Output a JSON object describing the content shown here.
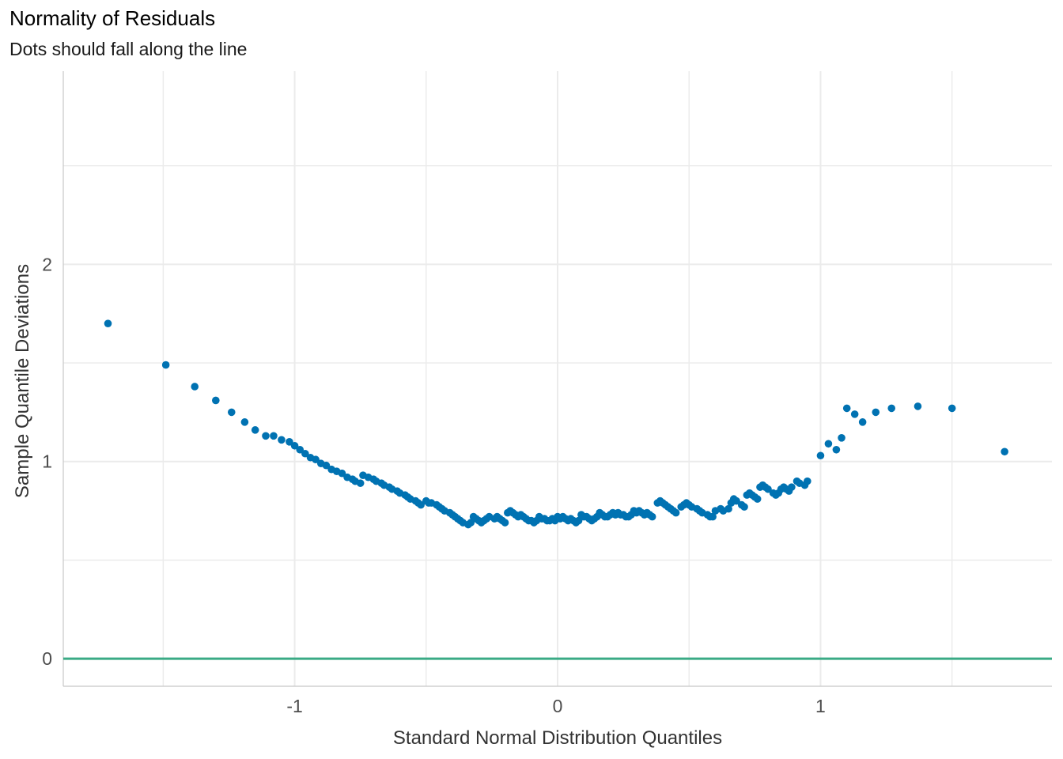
{
  "chart_data": {
    "type": "scatter",
    "title": "Normality of Residuals",
    "subtitle": "Dots should fall along the line",
    "xlabel": "Standard Normal Distribution Quantiles",
    "ylabel": "Sample Quantile Deviations",
    "xlim": [
      -1.88,
      1.88
    ],
    "ylim": [
      -0.14,
      2.98
    ],
    "x_ticks": [
      -1,
      0,
      1
    ],
    "x_tick_labels": [
      "-1",
      "0",
      "1"
    ],
    "y_ticks": [
      0,
      1,
      2
    ],
    "y_tick_labels": [
      "0",
      "1",
      "2"
    ],
    "grid": true,
    "reference_line": {
      "y": 0,
      "color": "#3aaa85"
    },
    "point_color": "#0072b2",
    "grid_color": "#ebebeb",
    "points": [
      [
        -1.71,
        1.7
      ],
      [
        -1.49,
        1.49
      ],
      [
        -1.38,
        1.38
      ],
      [
        -1.3,
        1.31
      ],
      [
        -1.24,
        1.25
      ],
      [
        -1.19,
        1.2
      ],
      [
        -1.15,
        1.16
      ],
      [
        -1.11,
        1.13
      ],
      [
        -1.08,
        1.13
      ],
      [
        -1.05,
        1.11
      ],
      [
        -1.02,
        1.1
      ],
      [
        -1.0,
        1.08
      ],
      [
        -0.98,
        1.06
      ],
      [
        -0.96,
        1.04
      ],
      [
        -0.94,
        1.02
      ],
      [
        -0.92,
        1.01
      ],
      [
        -0.9,
        0.99
      ],
      [
        -0.88,
        0.98
      ],
      [
        -0.86,
        0.96
      ],
      [
        -0.84,
        0.95
      ],
      [
        -0.82,
        0.94
      ],
      [
        -0.8,
        0.92
      ],
      [
        -0.78,
        0.91
      ],
      [
        -0.77,
        0.9
      ],
      [
        -0.75,
        0.89
      ],
      [
        -0.74,
        0.93
      ],
      [
        -0.72,
        0.92
      ],
      [
        -0.7,
        0.91
      ],
      [
        -0.69,
        0.9
      ],
      [
        -0.67,
        0.89
      ],
      [
        -0.66,
        0.88
      ],
      [
        -0.64,
        0.87
      ],
      [
        -0.63,
        0.86
      ],
      [
        -0.61,
        0.85
      ],
      [
        -0.6,
        0.84
      ],
      [
        -0.58,
        0.83
      ],
      [
        -0.57,
        0.82
      ],
      [
        -0.56,
        0.81
      ],
      [
        -0.54,
        0.8
      ],
      [
        -0.53,
        0.79
      ],
      [
        -0.52,
        0.78
      ],
      [
        -0.5,
        0.8
      ],
      [
        -0.49,
        0.79
      ],
      [
        -0.48,
        0.79
      ],
      [
        -0.46,
        0.78
      ],
      [
        -0.45,
        0.77
      ],
      [
        -0.44,
        0.76
      ],
      [
        -0.43,
        0.75
      ],
      [
        -0.41,
        0.74
      ],
      [
        -0.4,
        0.73
      ],
      [
        -0.39,
        0.72
      ],
      [
        -0.38,
        0.71
      ],
      [
        -0.37,
        0.7
      ],
      [
        -0.36,
        0.69
      ],
      [
        -0.34,
        0.68
      ],
      [
        -0.33,
        0.69
      ],
      [
        -0.32,
        0.72
      ],
      [
        -0.31,
        0.71
      ],
      [
        -0.3,
        0.7
      ],
      [
        -0.29,
        0.69
      ],
      [
        -0.28,
        0.7
      ],
      [
        -0.27,
        0.71
      ],
      [
        -0.26,
        0.72
      ],
      [
        -0.24,
        0.71
      ],
      [
        -0.23,
        0.72
      ],
      [
        -0.22,
        0.71
      ],
      [
        -0.21,
        0.7
      ],
      [
        -0.2,
        0.69
      ],
      [
        -0.19,
        0.74
      ],
      [
        -0.18,
        0.75
      ],
      [
        -0.17,
        0.74
      ],
      [
        -0.16,
        0.73
      ],
      [
        -0.15,
        0.72
      ],
      [
        -0.14,
        0.73
      ],
      [
        -0.13,
        0.72
      ],
      [
        -0.12,
        0.71
      ],
      [
        -0.11,
        0.7
      ],
      [
        -0.1,
        0.7
      ],
      [
        -0.09,
        0.69
      ],
      [
        -0.08,
        0.7
      ],
      [
        -0.07,
        0.72
      ],
      [
        -0.06,
        0.71
      ],
      [
        -0.05,
        0.71
      ],
      [
        -0.04,
        0.7
      ],
      [
        -0.03,
        0.7
      ],
      [
        -0.02,
        0.71
      ],
      [
        -0.01,
        0.7
      ],
      [
        0.0,
        0.72
      ],
      [
        0.01,
        0.71
      ],
      [
        0.02,
        0.72
      ],
      [
        0.03,
        0.71
      ],
      [
        0.04,
        0.7
      ],
      [
        0.05,
        0.71
      ],
      [
        0.06,
        0.7
      ],
      [
        0.07,
        0.69
      ],
      [
        0.08,
        0.7
      ],
      [
        0.09,
        0.73
      ],
      [
        0.1,
        0.72
      ],
      [
        0.11,
        0.72
      ],
      [
        0.12,
        0.71
      ],
      [
        0.13,
        0.7
      ],
      [
        0.14,
        0.71
      ],
      [
        0.15,
        0.72
      ],
      [
        0.16,
        0.74
      ],
      [
        0.17,
        0.73
      ],
      [
        0.18,
        0.72
      ],
      [
        0.19,
        0.72
      ],
      [
        0.2,
        0.73
      ],
      [
        0.21,
        0.74
      ],
      [
        0.22,
        0.73
      ],
      [
        0.23,
        0.74
      ],
      [
        0.24,
        0.73
      ],
      [
        0.25,
        0.73
      ],
      [
        0.26,
        0.72
      ],
      [
        0.27,
        0.72
      ],
      [
        0.28,
        0.73
      ],
      [
        0.29,
        0.75
      ],
      [
        0.3,
        0.74
      ],
      [
        0.31,
        0.75
      ],
      [
        0.32,
        0.74
      ],
      [
        0.33,
        0.73
      ],
      [
        0.34,
        0.74
      ],
      [
        0.35,
        0.73
      ],
      [
        0.36,
        0.72
      ],
      [
        0.38,
        0.79
      ],
      [
        0.39,
        0.8
      ],
      [
        0.4,
        0.79
      ],
      [
        0.41,
        0.78
      ],
      [
        0.42,
        0.77
      ],
      [
        0.43,
        0.76
      ],
      [
        0.44,
        0.75
      ],
      [
        0.45,
        0.74
      ],
      [
        0.47,
        0.77
      ],
      [
        0.48,
        0.78
      ],
      [
        0.49,
        0.79
      ],
      [
        0.5,
        0.78
      ],
      [
        0.51,
        0.77
      ],
      [
        0.53,
        0.76
      ],
      [
        0.54,
        0.75
      ],
      [
        0.55,
        0.74
      ],
      [
        0.57,
        0.73
      ],
      [
        0.58,
        0.72
      ],
      [
        0.59,
        0.72
      ],
      [
        0.6,
        0.75
      ],
      [
        0.62,
        0.76
      ],
      [
        0.63,
        0.75
      ],
      [
        0.65,
        0.76
      ],
      [
        0.66,
        0.79
      ],
      [
        0.67,
        0.81
      ],
      [
        0.68,
        0.8
      ],
      [
        0.7,
        0.78
      ],
      [
        0.71,
        0.77
      ],
      [
        0.72,
        0.83
      ],
      [
        0.73,
        0.84
      ],
      [
        0.74,
        0.83
      ],
      [
        0.75,
        0.82
      ],
      [
        0.76,
        0.81
      ],
      [
        0.77,
        0.87
      ],
      [
        0.78,
        0.88
      ],
      [
        0.79,
        0.87
      ],
      [
        0.8,
        0.86
      ],
      [
        0.82,
        0.84
      ],
      [
        0.83,
        0.83
      ],
      [
        0.84,
        0.84
      ],
      [
        0.85,
        0.86
      ],
      [
        0.86,
        0.87
      ],
      [
        0.87,
        0.86
      ],
      [
        0.88,
        0.85
      ],
      [
        0.89,
        0.87
      ],
      [
        0.91,
        0.9
      ],
      [
        0.92,
        0.89
      ],
      [
        0.94,
        0.88
      ],
      [
        0.95,
        0.9
      ],
      [
        1.0,
        1.03
      ],
      [
        1.03,
        1.09
      ],
      [
        1.06,
        1.06
      ],
      [
        1.08,
        1.12
      ],
      [
        1.1,
        1.27
      ],
      [
        1.13,
        1.24
      ],
      [
        1.16,
        1.2
      ],
      [
        1.21,
        1.25
      ],
      [
        1.27,
        1.27
      ],
      [
        1.37,
        1.28
      ],
      [
        1.5,
        1.27
      ],
      [
        1.7,
        1.05
      ]
    ]
  }
}
